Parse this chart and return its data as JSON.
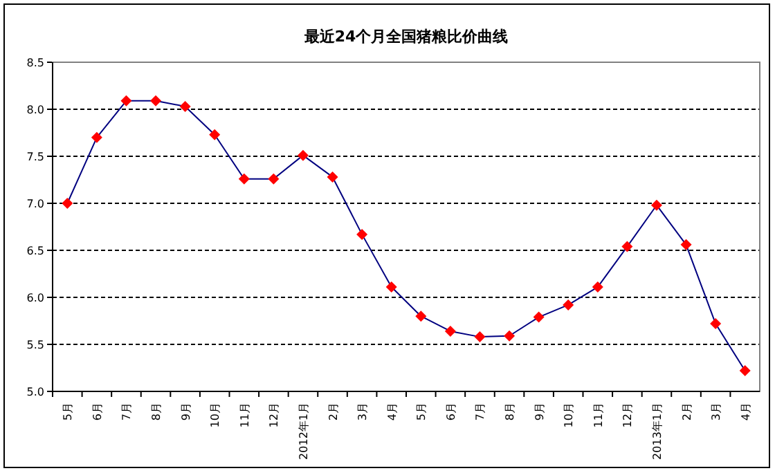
{
  "chart_data": {
    "type": "line",
    "title": "最近24个月全国猪粮比价曲线",
    "categories": [
      "5月",
      "6月",
      "7月",
      "8月",
      "9月",
      "10月",
      "11月",
      "12月",
      "2012年1月",
      "2月",
      "3月",
      "4月",
      "5月",
      "6月",
      "7月",
      "8月",
      "9月",
      "10月",
      "11月",
      "12月",
      "2013年1月",
      "2月",
      "3月",
      "4月"
    ],
    "series": [
      {
        "color": "#000080",
        "colors": [
          "#ff0000",
          "#ff0000",
          "#ff0000",
          "#ff0000",
          "#ff0000",
          "#ff0000",
          "#ff0000",
          "#ff0000",
          "#ff0000",
          "#ff0000",
          "#ff0000",
          "#ff0000",
          "#ff0000",
          "#ff0000",
          "#ff0000",
          "#ff0000",
          "#ff0000",
          "#ff0000",
          "#ff0000",
          "#ff0000",
          "#ff0000",
          "#ff0000",
          "#ff0000",
          "#ff0000"
        ],
        "values": [
          7.0,
          7.7,
          8.09,
          8.09,
          8.03,
          7.73,
          7.26,
          7.26,
          7.51,
          7.28,
          6.67,
          6.11,
          5.8,
          5.64,
          5.58,
          5.59,
          5.79,
          5.92,
          6.11,
          6.54,
          6.98,
          6.56,
          5.72,
          5.22
        ]
      }
    ],
    "ylim": [
      5,
      8.5
    ],
    "yticks": [
      {
        "value": 5,
        "label": "5.0"
      },
      {
        "value": 5.5,
        "label": "5.5"
      },
      {
        "value": 6,
        "label": "6.0"
      },
      {
        "value": 6.5,
        "label": "6.5"
      },
      {
        "value": 7,
        "label": "7.0"
      },
      {
        "value": 7.5,
        "label": "7.5"
      },
      {
        "value": 8,
        "label": "8.0"
      },
      {
        "value": 8.5,
        "label": "8.5"
      }
    ],
    "grid": "y",
    "marker": "diamond",
    "line_style": "solid"
  }
}
